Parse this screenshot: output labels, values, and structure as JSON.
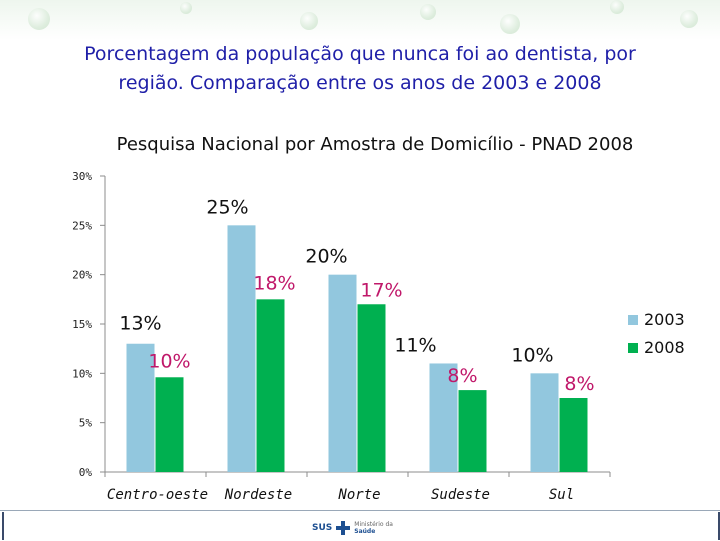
{
  "header": {
    "title_line1": "Porcentagem da população que nunca foi ao dentista, por",
    "title_line2": "região. Comparação entre os anos de 2003 e 2008"
  },
  "chart_data": {
    "type": "bar",
    "subtitle": "Pesquisa Nacional por Amostra de Domicílio - PNAD 2008",
    "categories": [
      "Centro-oeste",
      "Nordeste",
      "Norte",
      "Sudeste",
      "Sul"
    ],
    "series": [
      {
        "name": "2003",
        "values": [
          13,
          25,
          20,
          11,
          10
        ],
        "labels": [
          "13%",
          "25%",
          "20%",
          "11%",
          "10%"
        ],
        "color": "#92c7de"
      },
      {
        "name": "2008",
        "values": [
          9.6,
          17.5,
          17,
          8.3,
          7.5
        ],
        "labels": [
          "10%",
          "18%",
          "17%",
          "8%",
          "8%"
        ],
        "color": "#00b050"
      }
    ],
    "label_colors": {
      "2003": "#111111",
      "2008": "#c0186a"
    },
    "yticks": [
      "0%",
      "5%",
      "10%",
      "15%",
      "20%",
      "25%",
      "30%"
    ],
    "ylim": [
      0,
      30
    ],
    "legend_position": "right",
    "grid": false
  },
  "footer": {
    "logo_sus": "SUS",
    "logo_line1": "Ministério da",
    "logo_line2": "Saúde"
  }
}
